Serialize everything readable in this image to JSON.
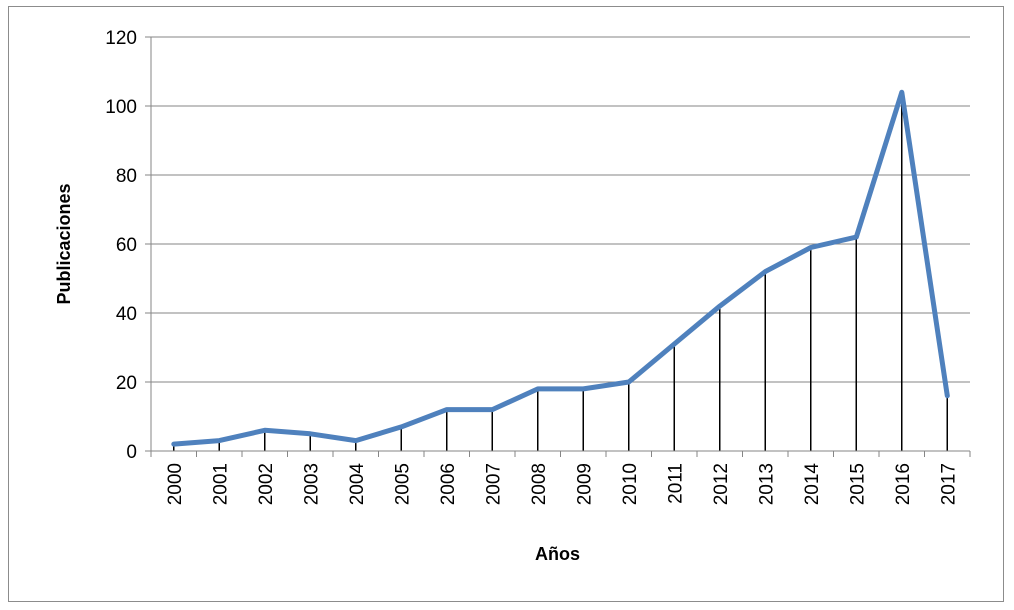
{
  "chart_data": {
    "type": "line",
    "title": "",
    "xlabel": "Años",
    "ylabel": "Publicaciones",
    "categories": [
      "2000",
      "2001",
      "2002",
      "2003",
      "2004",
      "2005",
      "2006",
      "2007",
      "2008",
      "2009",
      "2010",
      "2011",
      "2012",
      "2013",
      "2014",
      "2015",
      "2016",
      "2017"
    ],
    "series": [
      {
        "values": [
          2,
          3,
          6,
          5,
          3,
          7,
          12,
          12,
          18,
          18,
          20,
          31,
          42,
          52,
          59,
          62,
          104,
          16
        ]
      }
    ],
    "ylim": [
      0,
      120
    ],
    "yticks": [
      0,
      20,
      40,
      60,
      80,
      100,
      120
    ],
    "grid": true,
    "drop_lines": true,
    "legend": "none",
    "colors": {
      "line": "#4f81bd",
      "grid": "#868686",
      "drop": "#000000"
    }
  }
}
